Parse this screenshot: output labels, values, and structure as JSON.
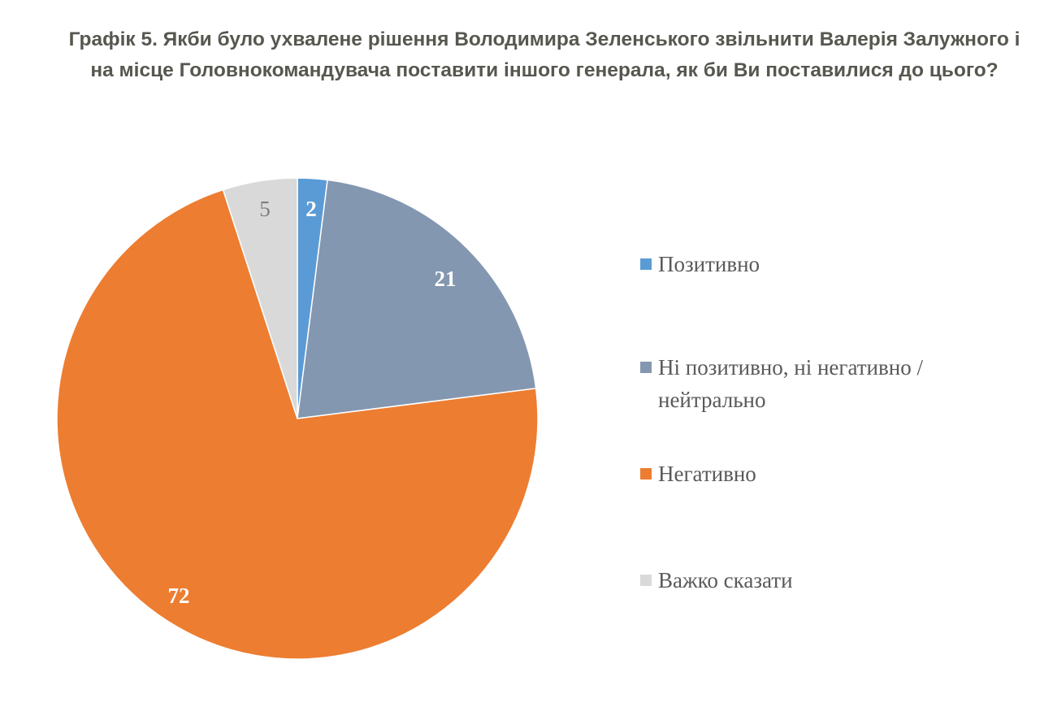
{
  "chart_data": {
    "type": "pie",
    "title": "Графік 5. Якби було ухвалене рішення Володимира Зеленського звільнити Валерія Залужного і на місце Головнокомандувача поставити іншого генерала, як би Ви поставилися до цього?",
    "legend_position": "right",
    "start_angle": "top, clockwise",
    "series": [
      {
        "name": "Позитивно",
        "value": 2,
        "color": "#5b9bd5",
        "label_color": "#ffffff"
      },
      {
        "name": "Ні позитивно, ні негативно / нейтрально",
        "value": 21,
        "color": "#8497b0",
        "label_color": "#ffffff"
      },
      {
        "name": "Негативно",
        "value": 72,
        "color": "#ed7d31",
        "label_color": "#ffffff"
      },
      {
        "name": "Важко сказати",
        "value": 5,
        "color": "#d9d9d9",
        "label_color": "#7f7f7f"
      }
    ]
  }
}
